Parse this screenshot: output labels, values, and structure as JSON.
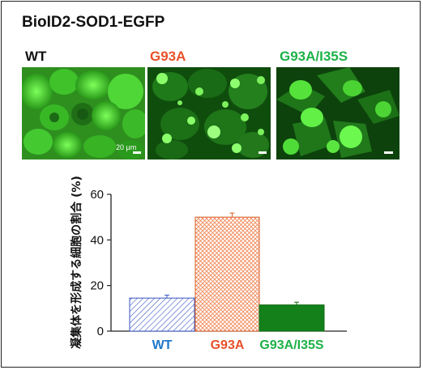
{
  "title": "BioID2-SOD1-EGFP",
  "panels": [
    {
      "label": "WT",
      "color": "#111111"
    },
    {
      "label": "G93A",
      "color": "#e8502a"
    },
    {
      "label": "G93A/I35S",
      "color": "#1db247"
    }
  ],
  "scale_label": "20 μm",
  "chart_data": {
    "type": "bar",
    "ylabel": "凝集体を形成する細胞の割合 (%)",
    "ylim": [
      0,
      60
    ],
    "yticks": [
      0,
      20,
      40,
      60
    ],
    "categories": [
      "WT",
      "G93A",
      "G93A/I35S"
    ],
    "category_colors": [
      "#1f77c8",
      "#e8502a",
      "#1db247"
    ],
    "values": [
      14.5,
      50,
      11.5
    ],
    "errors": [
      1.3,
      1.8,
      1.2
    ],
    "fills": [
      "blue-diagonal-hatch",
      "orange-crosshatch",
      "solid-green"
    ]
  }
}
